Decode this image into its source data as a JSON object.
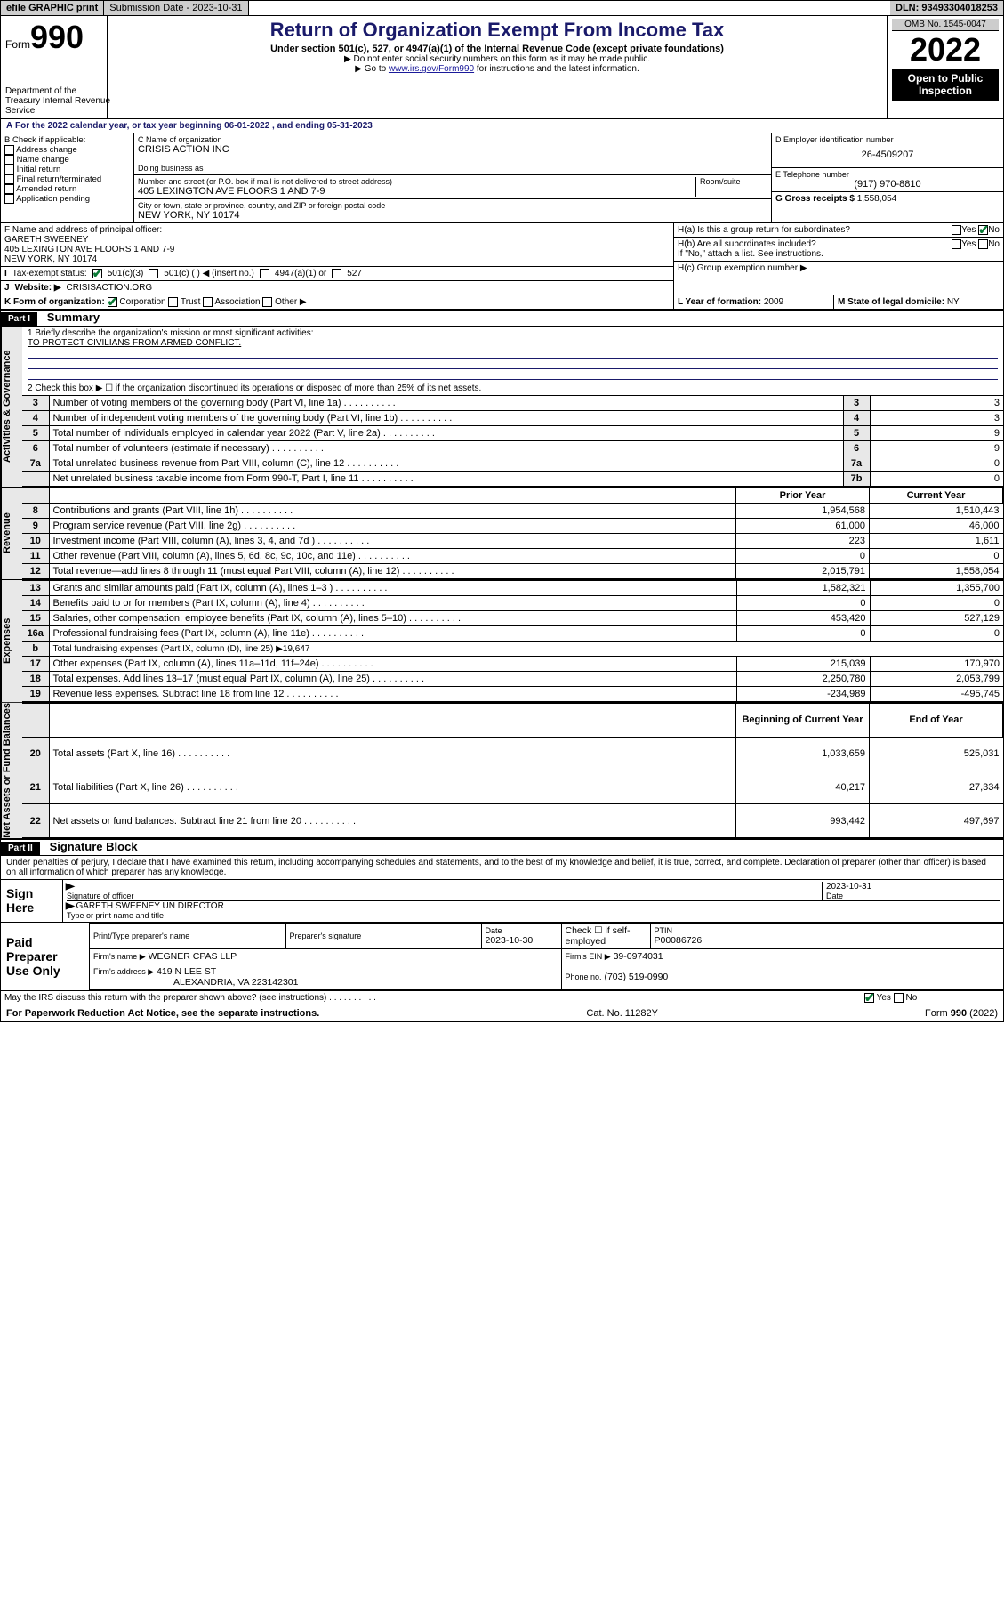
{
  "topbar": {
    "efile": "efile GRAPHIC print",
    "submission": "Submission Date - 2023-10-31",
    "dln": "DLN: 93493304018253"
  },
  "header": {
    "form_label": "Form",
    "form_no": "990",
    "title": "Return of Organization Exempt From Income Tax",
    "subtitle": "Under section 501(c), 527, or 4947(a)(1) of the Internal Revenue Code (except private foundations)",
    "note1": "▶ Do not enter social security numbers on this form as it may be made public.",
    "note2a": "▶ Go to ",
    "note2_link": "www.irs.gov/Form990",
    "note2b": " for instructions and the latest information.",
    "omb": "OMB No. 1545-0047",
    "year": "2022",
    "open": "Open to Public Inspection",
    "dept": "Department of the Treasury Internal Revenue Service"
  },
  "sectionA": {
    "text_a": "For the 2022 calendar year, or tax year beginning ",
    "begin": "06-01-2022",
    "text_b": " , and ending ",
    "end": "05-31-2023"
  },
  "sectionB": {
    "hdr": "B Check if applicable:",
    "items": [
      "Address change",
      "Name change",
      "Initial return",
      "Final return/terminated",
      "Amended return",
      "Application pending"
    ]
  },
  "sectionC": {
    "lbl": "C Name of organization",
    "name": "CRISIS ACTION INC",
    "dba_lbl": "Doing business as",
    "addr_lbl": "Number and street (or P.O. box if mail is not delivered to street address)",
    "room_lbl": "Room/suite",
    "addr": "405 LEXINGTON AVE FLOORS 1 AND 7-9",
    "city_lbl": "City or town, state or province, country, and ZIP or foreign postal code",
    "city": "NEW YORK, NY  10174"
  },
  "sectionD": {
    "lbl": "D Employer identification number",
    "val": "26-4509207"
  },
  "sectionE": {
    "lbl": "E Telephone number",
    "val": "(917) 970-8810"
  },
  "sectionG": {
    "lbl": "G Gross receipts $",
    "val": "1,558,054"
  },
  "sectionF": {
    "lbl": "F  Name and address of principal officer:",
    "name": "GARETH SWEENEY",
    "addr1": "405 LEXINGTON AVE FLOORS 1 AND 7-9",
    "addr2": "NEW YORK, NY  10174"
  },
  "sectionH": {
    "a_lbl": "H(a)  Is this a group return for subordinates?",
    "b_lbl": "H(b)  Are all subordinates included?",
    "b_note": "If \"No,\" attach a list. See instructions.",
    "c_lbl": "H(c)  Group exemption number ▶"
  },
  "sectionI": {
    "lbl": "Tax-exempt status:",
    "opts": [
      "501(c)(3)",
      "501(c) (  ) ◀ (insert no.)",
      "4947(a)(1) or",
      "527"
    ]
  },
  "sectionJ": {
    "lbl": "Website: ▶",
    "val": "CRISISACTION.ORG"
  },
  "sectionK": {
    "lbl": "K Form of organization:",
    "opts": [
      "Corporation",
      "Trust",
      "Association",
      "Other ▶"
    ]
  },
  "sectionL": {
    "lbl": "L Year of formation:",
    "val": "2009"
  },
  "sectionM": {
    "lbl": "M State of legal domicile:",
    "val": "NY"
  },
  "part1": {
    "title": "Part I",
    "name": "Summary",
    "brief_lbl": "1  Briefly describe the organization's mission or most significant activities:",
    "brief": "TO PROTECT CIVILIANS FROM ARMED CONFLICT.",
    "line2": "2    Check this box ▶ ☐  if the organization discontinued its operations or disposed of more than 25% of its net assets.",
    "vlabels": {
      "ag": "Activities & Governance",
      "rev": "Revenue",
      "exp": "Expenses",
      "net": "Net Assets or Fund Balances"
    },
    "govrows": [
      {
        "n": "3",
        "d": "Number of voting members of the governing body (Part VI, line 1a)",
        "v": "3"
      },
      {
        "n": "4",
        "d": "Number of independent voting members of the governing body (Part VI, line 1b)",
        "v": "3"
      },
      {
        "n": "5",
        "d": "Total number of individuals employed in calendar year 2022 (Part V, line 2a)",
        "v": "9"
      },
      {
        "n": "6",
        "d": "Total number of volunteers (estimate if necessary)",
        "v": "9"
      },
      {
        "n": "7a",
        "d": "Total unrelated business revenue from Part VIII, column (C), line 12",
        "v": "0"
      },
      {
        "n": "",
        "d": "Net unrelated business taxable income from Form 990-T, Part I, line 11",
        "nn": "7b",
        "v": "0"
      }
    ],
    "pycol": "Prior Year",
    "cycol": "Current Year",
    "revrows": [
      {
        "n": "8",
        "d": "Contributions and grants (Part VIII, line 1h)",
        "p": "1,954,568",
        "c": "1,510,443"
      },
      {
        "n": "9",
        "d": "Program service revenue (Part VIII, line 2g)",
        "p": "61,000",
        "c": "46,000"
      },
      {
        "n": "10",
        "d": "Investment income (Part VIII, column (A), lines 3, 4, and 7d )",
        "p": "223",
        "c": "1,611"
      },
      {
        "n": "11",
        "d": "Other revenue (Part VIII, column (A), lines 5, 6d, 8c, 9c, 10c, and 11e)",
        "p": "0",
        "c": "0"
      },
      {
        "n": "12",
        "d": "Total revenue—add lines 8 through 11 (must equal Part VIII, column (A), line 12)",
        "p": "2,015,791",
        "c": "1,558,054"
      }
    ],
    "exprows": [
      {
        "n": "13",
        "d": "Grants and similar amounts paid (Part IX, column (A), lines 1–3 )",
        "p": "1,582,321",
        "c": "1,355,700"
      },
      {
        "n": "14",
        "d": "Benefits paid to or for members (Part IX, column (A), line 4)",
        "p": "0",
        "c": "0"
      },
      {
        "n": "15",
        "d": "Salaries, other compensation, employee benefits (Part IX, column (A), lines 5–10)",
        "p": "453,420",
        "c": "527,129"
      },
      {
        "n": "16a",
        "d": "Professional fundraising fees (Part IX, column (A), line 11e)",
        "p": "0",
        "c": "0"
      },
      {
        "n": "b",
        "d": "Total fundraising expenses (Part IX, column (D), line 25) ▶19,647",
        "p": "",
        "c": "",
        "span": true
      },
      {
        "n": "17",
        "d": "Other expenses (Part IX, column (A), lines 11a–11d, 11f–24e)",
        "p": "215,039",
        "c": "170,970"
      },
      {
        "n": "18",
        "d": "Total expenses. Add lines 13–17 (must equal Part IX, column (A), line 25)",
        "p": "2,250,780",
        "c": "2,053,799"
      },
      {
        "n": "19",
        "d": "Revenue less expenses. Subtract line 18 from line 12",
        "p": "-234,989",
        "c": "-495,745"
      }
    ],
    "bcol": "Beginning of Current Year",
    "ecol": "End of Year",
    "netrows": [
      {
        "n": "20",
        "d": "Total assets (Part X, line 16)",
        "p": "1,033,659",
        "c": "525,031"
      },
      {
        "n": "21",
        "d": "Total liabilities (Part X, line 26)",
        "p": "40,217",
        "c": "27,334"
      },
      {
        "n": "22",
        "d": "Net assets or fund balances. Subtract line 21 from line 20",
        "p": "993,442",
        "c": "497,697"
      }
    ]
  },
  "part2": {
    "title": "Part II",
    "name": "Signature Block",
    "decl": "Under penalties of perjury, I declare that I have examined this return, including accompanying schedules and statements, and to the best of my knowledge and belief, it is true, correct, and complete. Declaration of preparer (other than officer) is based on all information of which preparer has any knowledge.",
    "sign_here": "Sign Here",
    "sig_officer": "Signature of officer",
    "sig_date": "2023-10-31",
    "sig_date_lbl": "Date",
    "officer_name": "GARETH SWEENEY UN DIRECTOR",
    "officer_lbl": "Type or print name and title",
    "paid": "Paid Preparer Use Only",
    "prep_name_lbl": "Print/Type preparer's name",
    "prep_sig_lbl": "Preparer's signature",
    "prep_date_lbl": "Date",
    "prep_date": "2023-10-30",
    "prep_check_lbl": "Check ☐ if self-employed",
    "ptin_lbl": "PTIN",
    "ptin": "P00086726",
    "firm_name_lbl": "Firm's name    ▶",
    "firm_name": "WEGNER CPAS LLP",
    "firm_ein_lbl": "Firm's EIN ▶",
    "firm_ein": "39-0974031",
    "firm_addr_lbl": "Firm's address ▶",
    "firm_addr1": "419 N LEE ST",
    "firm_addr2": "ALEXANDRIA, VA  223142301",
    "firm_phone_lbl": "Phone no.",
    "firm_phone": "(703) 519-0990",
    "discuss": "May the IRS discuss this return with the preparer shown above? (see instructions)"
  },
  "footer": {
    "left": "For Paperwork Reduction Act Notice, see the separate instructions.",
    "mid": "Cat. No. 11282Y",
    "right": "Form 990 (2022)"
  }
}
